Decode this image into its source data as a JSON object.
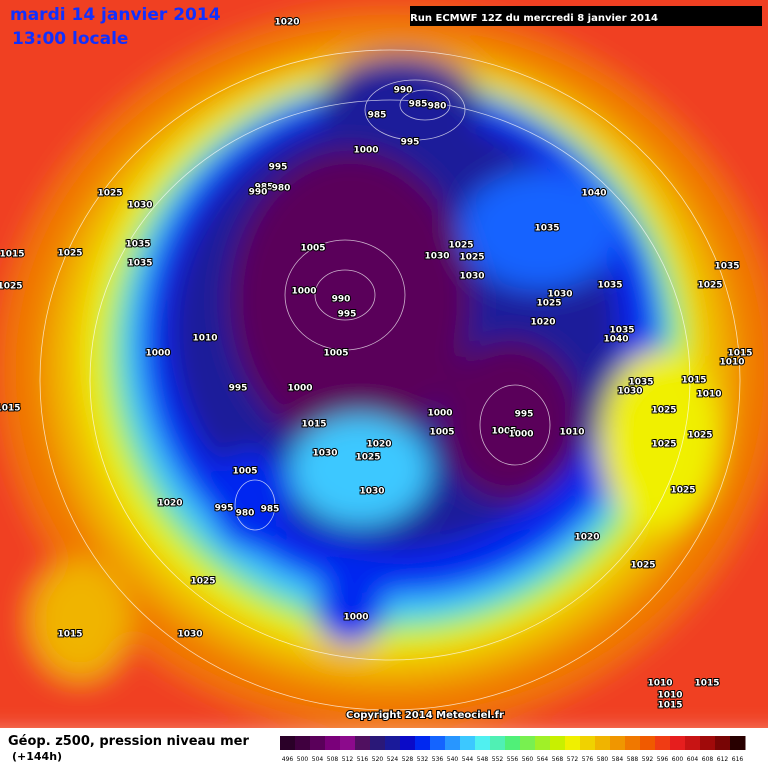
{
  "header": {
    "date": "mardi 14 janvier 2014",
    "time": "13:00 locale",
    "run": "Run ECMWF 12Z du mercredi 8 janvier 2014"
  },
  "footer": {
    "copyright": "Copyright 2014 Meteociel.fr",
    "title": "Géop. z500, pression niveau mer",
    "lead": "(+144h)"
  },
  "colorbar": {
    "levels": [
      496,
      500,
      504,
      508,
      512,
      516,
      520,
      524,
      528,
      532,
      536,
      540,
      544,
      548,
      552,
      556,
      560,
      564,
      568,
      572,
      576,
      580,
      584,
      588,
      592,
      596,
      600,
      604,
      608,
      612,
      616
    ],
    "colors": [
      "#2a0028",
      "#40003f",
      "#5a005a",
      "#7a007a",
      "#8c0a8c",
      "#501060",
      "#2a1878",
      "#1a1a9a",
      "#0a0ac8",
      "#0028f0",
      "#1464ff",
      "#2896ff",
      "#3cc8ff",
      "#50f0f0",
      "#50f0b4",
      "#50f078",
      "#78f050",
      "#a0f028",
      "#c8f000",
      "#f0f000",
      "#f0d200",
      "#f0b400",
      "#f09600",
      "#f07800",
      "#f05a00",
      "#f03c14",
      "#e61e1e",
      "#c81414",
      "#a00a0a",
      "#780505",
      "#280000"
    ]
  },
  "isobar_labels": [
    "1020",
    "1025",
    "1030",
    "1035",
    "1035",
    "1025",
    "1015",
    "1025",
    "990",
    "985",
    "980",
    "985",
    "995",
    "1000",
    "995",
    "985",
    "980",
    "990",
    "1040",
    "1035",
    "1025",
    "1030",
    "1025",
    "1030",
    "1035",
    "1030",
    "1025",
    "1020",
    "1035",
    "1025",
    "1005",
    "1000",
    "990",
    "995",
    "1010",
    "1000",
    "1005",
    "995",
    "1000",
    "1035",
    "1040",
    "1035",
    "1030",
    "1015",
    "1010",
    "1015",
    "1010",
    "1015",
    "1015",
    "1020",
    "1030",
    "1025",
    "1000",
    "995",
    "1005",
    "1005",
    "1000",
    "1010",
    "1025",
    "1025",
    "1025",
    "1025",
    "1005",
    "1030",
    "995",
    "980",
    "985",
    "1020",
    "1020",
    "1025",
    "1025",
    "1000",
    "1015",
    "1030",
    "1010",
    "1015",
    "1010",
    "1015"
  ]
}
